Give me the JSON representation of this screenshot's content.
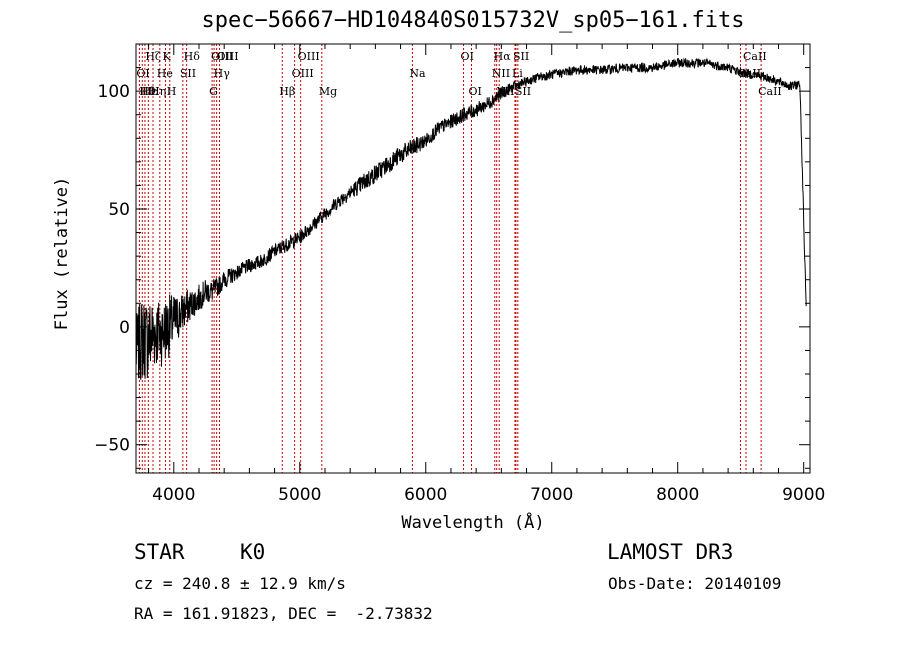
{
  "chart_data": {
    "type": "line",
    "title": "spec−56667−HD104840S015732V_sp05−161.fits",
    "xlabel": "Wavelength (Å)",
    "ylabel": "Flux (relative)",
    "xlim": [
      3700,
      9050
    ],
    "ylim": [
      -62,
      120
    ],
    "x_ticks": [
      4000,
      5000,
      6000,
      7000,
      8000,
      9000
    ],
    "y_ticks": [
      -50,
      0,
      50,
      100
    ],
    "y_tick_labels": [
      "−50",
      "0",
      "50",
      "100"
    ],
    "series": [
      {
        "name": "flux",
        "x": [
          3700,
          3750,
          3800,
          3850,
          3900,
          3950,
          4000,
          4050,
          4100,
          4150,
          4200,
          4250,
          4300,
          4350,
          4400,
          4500,
          4600,
          4700,
          4800,
          4900,
          5000,
          5100,
          5200,
          5300,
          5400,
          5500,
          5600,
          5700,
          5800,
          5900,
          6000,
          6100,
          6200,
          6300,
          6400,
          6500,
          6600,
          6700,
          6800,
          6900,
          7000,
          7200,
          7400,
          7600,
          7800,
          8000,
          8200,
          8400,
          8500,
          8600,
          8700,
          8800,
          8900,
          8970,
          8990,
          9000,
          9010,
          9020
        ],
        "y": [
          -10,
          -5,
          -5,
          -2,
          -3,
          0,
          2,
          5,
          8,
          10,
          12,
          15,
          15,
          17,
          20,
          23,
          26,
          28,
          32,
          35,
          38,
          43,
          48,
          53,
          57,
          61,
          65,
          69,
          73,
          76,
          79,
          84,
          87,
          90,
          92,
          95,
          99,
          102,
          104,
          106,
          107,
          109,
          109,
          110,
          110,
          112,
          112,
          110,
          108,
          107,
          106,
          104,
          102,
          103,
          65,
          45,
          25,
          10
        ],
        "noise": [
          15,
          18,
          18,
          16,
          14,
          14,
          12,
          9,
          8,
          6,
          6,
          5,
          5,
          4,
          4,
          3,
          3,
          3,
          3,
          3,
          3,
          3,
          3,
          3,
          3,
          4,
          4,
          4,
          4,
          4,
          3,
          3,
          3,
          3,
          3,
          3,
          3,
          2,
          2,
          2,
          2,
          2,
          2,
          2,
          2,
          2,
          2,
          2,
          2,
          2,
          2,
          2,
          2,
          2,
          2,
          2,
          2,
          2
        ]
      }
    ],
    "line_labels": [
      {
        "name": "OI",
        "wave": 3727,
        "row": 1
      },
      {
        "name": "Hθ",
        "wave": 3750,
        "row": 2
      },
      {
        "name": "Hε",
        "wave": 3771,
        "row": 2
      },
      {
        "name": "Hζ",
        "wave": 3798,
        "row": 0
      },
      {
        "name": "Hη",
        "wave": 3835,
        "row": 2
      },
      {
        "name": "He",
        "wave": 3889,
        "row": 1
      },
      {
        "name": "K",
        "wave": 3934,
        "row": 0
      },
      {
        "name": "H",
        "wave": 3968,
        "row": 2
      },
      {
        "name": "SII",
        "wave": 4072,
        "row": 1
      },
      {
        "name": "Hδ",
        "wave": 4102,
        "row": 0
      },
      {
        "name": "G",
        "wave": 4304,
        "row": 2
      },
      {
        "name": "OIII",
        "wave": 4320,
        "row": 0
      },
      {
        "name": "Hγ",
        "wave": 4340,
        "row": 1
      },
      {
        "name": "OIII",
        "wave": 4363,
        "row": 0
      },
      {
        "name": "Hβ",
        "wave": 4861,
        "row": 2
      },
      {
        "name": "OIII",
        "wave": 4959,
        "row": 1
      },
      {
        "name": "OIII",
        "wave": 5007,
        "row": 0
      },
      {
        "name": "Mg",
        "wave": 5175,
        "row": 2
      },
      {
        "name": "Na",
        "wave": 5894,
        "row": 1
      },
      {
        "name": "OI",
        "wave": 6300,
        "row": 0
      },
      {
        "name": "OI",
        "wave": 6363,
        "row": 2
      },
      {
        "name": "NII",
        "wave": 6548,
        "row": 1
      },
      {
        "name": "Hα",
        "wave": 6563,
        "row": 0
      },
      {
        "name": "NII",
        "wave": 6583,
        "row": 2
      },
      {
        "name": "SII",
        "wave": 6716,
        "row": 0
      },
      {
        "name": "Li",
        "wave": 6708,
        "row": 1
      },
      {
        "name": "SII",
        "wave": 6731,
        "row": 2
      },
      {
        "name": "CaII",
        "wave": 8498,
        "row": 1
      },
      {
        "name": "CaII",
        "wave": 8542,
        "row": 0
      },
      {
        "name": "CaII",
        "wave": 8662,
        "row": 2
      }
    ]
  },
  "info": {
    "object_class": "STAR",
    "subclass": "K0",
    "survey": "LAMOST DR3",
    "redshift": "cz = 240.8 ± 12.9 km/s",
    "obs_date": "Obs-Date: 20140109",
    "coords": "RA = 161.91823, DEC =  -2.73832"
  },
  "colors": {
    "line_marker": "#cc0000",
    "spectrum": "#000000",
    "axes": "#000000"
  }
}
